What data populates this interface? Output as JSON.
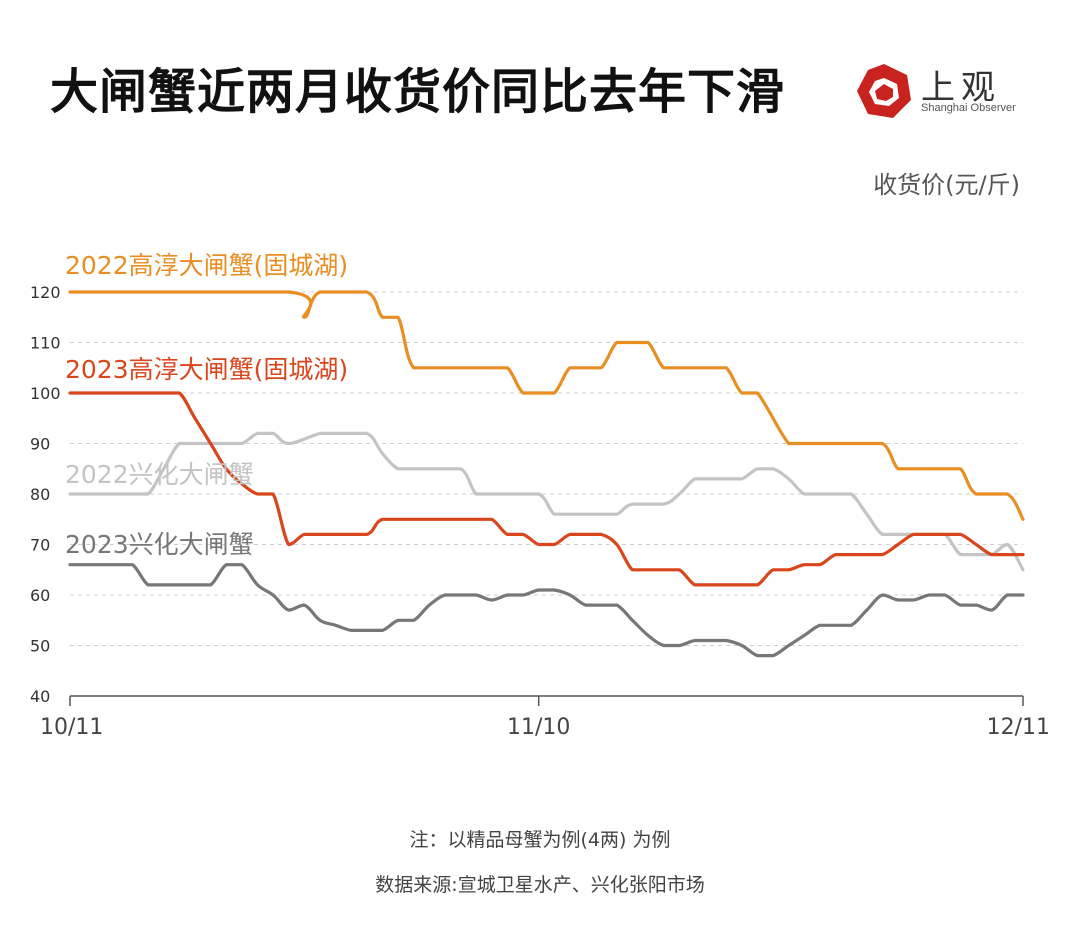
{
  "header": {
    "title": "大闸蟹近两月收货价同比去年下滑",
    "logo_cn": "上观",
    "logo_en": "Shanghai Observer",
    "unit": "收货价(元/斤)"
  },
  "notes": {
    "note": "注：以精品母蟹为例(4两) 为例",
    "source": "数据来源:宣城卫星水产、兴化张阳市场"
  },
  "chart_data": {
    "type": "line",
    "title": "大闸蟹近两月收货价同比去年下滑",
    "ylabel": "收货价(元/斤)",
    "xlabel": "",
    "ylim": [
      40,
      120
    ],
    "yticks": [
      40,
      50,
      60,
      70,
      80,
      90,
      100,
      110,
      120
    ],
    "xlim": [
      0,
      61
    ],
    "xticks": [
      {
        "label": "10/11",
        "x": 0
      },
      {
        "label": "11/10",
        "x": 30
      },
      {
        "label": "12/11",
        "x": 61
      }
    ],
    "grid": "horizontal dashed",
    "series": [
      {
        "name": "2022高淳大闸蟹(固城湖)",
        "color": "#E88E22",
        "x": [
          0,
          14,
          15,
          16,
          19,
          20,
          21,
          22,
          24,
          25,
          27,
          28,
          29,
          30,
          31,
          32,
          33,
          34,
          35,
          36,
          37,
          38,
          39,
          40,
          41,
          42,
          43,
          44,
          46,
          47,
          49,
          50,
          52,
          53,
          54,
          55,
          56,
          57,
          58,
          60,
          61
        ],
        "y": [
          120,
          120,
          115,
          120,
          120,
          115,
          115,
          105,
          105,
          105,
          105,
          105,
          100,
          100,
          100,
          105,
          105,
          105,
          110,
          110,
          110,
          105,
          105,
          105,
          105,
          105,
          100,
          100,
          90,
          90,
          90,
          90,
          90,
          85,
          85,
          85,
          85,
          85,
          80,
          80,
          75
        ]
      },
      {
        "name": "2023高淳大闸蟹(固城湖)",
        "color": "#D9461C",
        "x": [
          0,
          6,
          7,
          8,
          9,
          10,
          11,
          12,
          13,
          14,
          15,
          16,
          17,
          19,
          20,
          22,
          23,
          24,
          25,
          26,
          27,
          28,
          29,
          30,
          31,
          32,
          33,
          34,
          35,
          36,
          37,
          38,
          39,
          40,
          41,
          42,
          43,
          44,
          45,
          46,
          47,
          48,
          49,
          50,
          51,
          52,
          53,
          54,
          55,
          56,
          57,
          58,
          59,
          60,
          61
        ],
        "y": [
          100,
          100,
          100,
          95,
          90,
          85,
          82,
          80,
          80,
          70,
          72,
          72,
          72,
          72,
          75,
          75,
          75,
          75,
          75,
          75,
          75,
          72,
          72,
          70,
          70,
          72,
          72,
          72,
          70,
          65,
          65,
          65,
          65,
          62,
          62,
          62,
          62,
          62,
          65,
          65,
          66,
          66,
          68,
          68,
          68,
          68,
          70,
          72,
          72,
          72,
          72,
          70,
          68,
          68,
          68
        ]
      },
      {
        "name": "2022兴化大闸蟹",
        "color": "#C4C4C4",
        "x": [
          0,
          3,
          4,
          5,
          6,
          7,
          8,
          9,
          10,
          11,
          12,
          13,
          14,
          16,
          17,
          19,
          20,
          21,
          22,
          23,
          25,
          26,
          27,
          28,
          30,
          31,
          32,
          33,
          34,
          35,
          36,
          38,
          39,
          40,
          41,
          42,
          43,
          44,
          45,
          46,
          47,
          48,
          49,
          50,
          51,
          52,
          53,
          54,
          55,
          56,
          57,
          58,
          59,
          60,
          61
        ],
        "y": [
          80,
          80,
          80,
          80,
          85,
          90,
          90,
          90,
          90,
          90,
          92,
          92,
          90,
          92,
          92,
          92,
          88,
          85,
          85,
          85,
          85,
          80,
          80,
          80,
          80,
          76,
          76,
          76,
          76,
          76,
          78,
          78,
          80,
          83,
          83,
          83,
          83,
          85,
          85,
          83,
          80,
          80,
          80,
          80,
          76,
          72,
          72,
          72,
          72,
          72,
          68,
          68,
          68,
          70,
          65
        ]
      },
      {
        "name": "2023兴化大闸蟹",
        "color": "#777777",
        "x": [
          0,
          2,
          3,
          4,
          5,
          6,
          7,
          8,
          9,
          10,
          11,
          12,
          13,
          14,
          15,
          16,
          17,
          18,
          19,
          20,
          21,
          22,
          23,
          24,
          25,
          26,
          27,
          28,
          29,
          30,
          31,
          32,
          33,
          34,
          35,
          36,
          37,
          38,
          39,
          40,
          41,
          42,
          43,
          44,
          45,
          46,
          47,
          48,
          49,
          50,
          51,
          52,
          53,
          54,
          55,
          56,
          57,
          58,
          59,
          60,
          61
        ],
        "y": [
          66,
          66,
          66,
          66,
          62,
          62,
          62,
          62,
          62,
          66,
          66,
          62,
          60,
          57,
          58,
          55,
          54,
          53,
          53,
          53,
          55,
          55,
          58,
          60,
          60,
          60,
          59,
          60,
          60,
          61,
          61,
          60,
          58,
          58,
          58,
          55,
          52,
          50,
          50,
          51,
          51,
          51,
          50,
          48,
          48,
          50,
          52,
          54,
          54,
          54,
          57,
          60,
          59,
          59,
          60,
          60,
          58,
          58,
          57,
          60,
          60
        ]
      }
    ]
  }
}
